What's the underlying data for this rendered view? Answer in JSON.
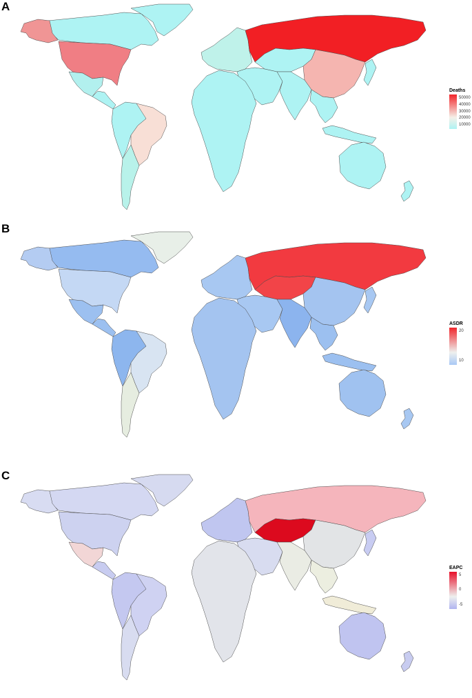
{
  "panels": [
    {
      "id": "A",
      "label": "A",
      "legend_title": "Deaths",
      "legend_ticks": [
        "50000",
        "40000",
        "30000",
        "20000",
        "10000"
      ],
      "scale": {
        "low": "#aef3f3",
        "mid": "#f5f0e8",
        "high": "#f2252a"
      },
      "default_color": "#aef3f3",
      "regions": {
        "alaska": "#f09595",
        "canada": "#aef3f3",
        "greenland": "#aef3f3",
        "usa": "#f07e84",
        "mexico": "#b2f0ee",
        "central_america": "#aef3f3",
        "south_america_north": "#aef3f3",
        "brazil": "#f8dfd6",
        "south_america_south": "#b8f2ea",
        "europe": "#bff2ea",
        "russia": "#f21f24",
        "africa": "#aef3f3",
        "middle_east": "#aef3f3",
        "central_asia": "#aef3f3",
        "south_asia": "#aef3f3",
        "china": "#f5b5b0",
        "se_asia": "#aef3f3",
        "japan": "#aef3f3",
        "indonesia": "#aef3f3",
        "australia": "#aef3f3",
        "new_zealand": "#aef3f3"
      }
    },
    {
      "id": "B",
      "label": "B",
      "legend_title": "ASDR",
      "legend_ticks": [
        "20",
        "10"
      ],
      "scale": {
        "low": "#a8c8f5",
        "mid": "#eef0ee",
        "high": "#f0262c"
      },
      "default_color": "#9cc0f0",
      "regions": {
        "alaska": "#b4ccf2",
        "canada": "#95bbf0",
        "greenland": "#e8efe8",
        "usa": "#c4d8f4",
        "mexico": "#9cc0f0",
        "central_america": "#9cc0f0",
        "south_america_north": "#8db6ee",
        "brazil": "#d8e4f2",
        "south_america_south": "#e6ede0",
        "europe": "#a8c8f2",
        "russia": "#f23a40",
        "africa": "#a4c4f0",
        "middle_east": "#a8c8f2",
        "central_asia": "#f24448",
        "south_asia": "#8cb4ee",
        "china": "#a4c4f0",
        "se_asia": "#9cc0f0",
        "japan": "#a8c8f2",
        "indonesia": "#9cc0f0",
        "australia": "#a0c2f0",
        "new_zealand": "#a8c8f2"
      }
    },
    {
      "id": "C",
      "label": "C",
      "legend_title": "EAPC",
      "legend_ticks": [
        "5",
        "0",
        "-5"
      ],
      "scale": {
        "low": "#b0b4f0",
        "mid": "#eef0ee",
        "high": "#e8102a"
      },
      "default_color": "#dde0ee",
      "regions": {
        "alaska": "#d8dcf2",
        "canada": "#d4d8f2",
        "greenland": "#d6daf0",
        "usa": "#cdd2f0",
        "mexico": "#f2d6d6",
        "central_america": "#c8ccf0",
        "south_america_north": "#c4c8f0",
        "brazil": "#cfd2f2",
        "south_america_south": "#d8dcf0",
        "europe": "#c0c6f0",
        "russia": "#f5b5bc",
        "africa": "#e2e4ea",
        "middle_east": "#d8dcf0",
        "central_asia": "#dc0a1e",
        "south_asia": "#eaece4",
        "china": "#e2e4e6",
        "se_asia": "#eceee0",
        "japan": "#c8ccf2",
        "indonesia": "#f0ecd8",
        "australia": "#c0c4f0",
        "new_zealand": "#c8ccf0"
      }
    }
  ]
}
